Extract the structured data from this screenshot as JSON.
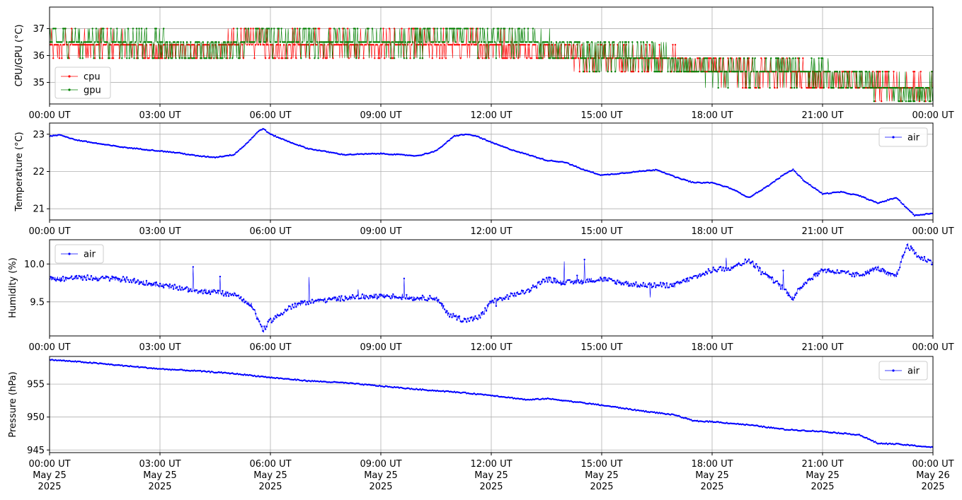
{
  "time_ticks": [
    "00:00 UT",
    "03:00 UT",
    "06:00 UT",
    "09:00 UT",
    "12:00 UT",
    "15:00 UT",
    "18:00 UT",
    "21:00 UT",
    "00:00 UT"
  ],
  "date_ticks": [
    "May 25",
    "May 25",
    "May 25",
    "May 25",
    "May 25",
    "May 25",
    "May 25",
    "May 25",
    "May 26"
  ],
  "year_ticks": [
    "2025",
    "2025",
    "2025",
    "2025",
    "2025",
    "2025",
    "2025",
    "2025",
    "2025"
  ],
  "colors": {
    "cpu": "#ff0000",
    "gpu": "#008000",
    "air": "#0000ff",
    "grid": "#b0b0b0"
  },
  "chart_data": [
    {
      "type": "line",
      "ylabel": "CPU/GPU (°C)",
      "xlim": [
        "2025-05-25 00:00 UT",
        "2025-05-26 00:00 UT"
      ],
      "ylim": [
        34.2,
        37.8
      ],
      "yticks": [
        35,
        36,
        37
      ],
      "ytick_labels": [
        "35",
        "36",
        "37"
      ],
      "grid": true,
      "legend": "lower-left",
      "x_hours": [
        0,
        1,
        2,
        3,
        4,
        5,
        5.75,
        6,
        7,
        8,
        9,
        10,
        11,
        11.5,
        12,
        13,
        14,
        15,
        16,
        17,
        18,
        19,
        20,
        21,
        22,
        22.5,
        23,
        24
      ],
      "series": [
        {
          "name": "cpu",
          "color": "#ff0000",
          "values": [
            36.4,
            36.4,
            36.4,
            36.2,
            36.3,
            36.4,
            36.6,
            36.4,
            36.4,
            36.4,
            36.4,
            36.4,
            36.4,
            36.4,
            36.4,
            36.4,
            36.1,
            35.9,
            35.9,
            35.8,
            35.5,
            35.4,
            35.4,
            35.2,
            35.0,
            34.9,
            34.8,
            34.8
          ]
        },
        {
          "name": "gpu",
          "color": "#008000",
          "values": [
            36.6,
            36.5,
            36.5,
            36.4,
            36.1,
            36.3,
            36.9,
            36.5,
            36.5,
            36.5,
            36.5,
            36.5,
            36.7,
            36.6,
            36.5,
            36.5,
            36.2,
            35.9,
            35.9,
            35.7,
            35.4,
            35.4,
            35.5,
            35.3,
            35.0,
            34.9,
            34.7,
            34.7
          ]
        }
      ]
    },
    {
      "type": "line",
      "ylabel": "Temperature (°C)",
      "xlim": [
        "2025-05-25 00:00 UT",
        "2025-05-26 00:00 UT"
      ],
      "ylim": [
        20.7,
        23.3
      ],
      "yticks": [
        21,
        22,
        23
      ],
      "ytick_labels": [
        "21",
        "22",
        "23"
      ],
      "grid": true,
      "legend": "upper-right",
      "x_hours": [
        0,
        0.3,
        0.7,
        1.5,
        2,
        2.5,
        3,
        3.5,
        4,
        4.5,
        5,
        5.3,
        5.7,
        5.8,
        6,
        6.5,
        7,
        8,
        9,
        10,
        10.5,
        11,
        11.3,
        11.6,
        12,
        12.5,
        13,
        13.5,
        14,
        14.5,
        15,
        15.5,
        16,
        16.5,
        17,
        17.5,
        18,
        18.5,
        19,
        19.5,
        20,
        20.2,
        20.5,
        21,
        21.5,
        22,
        22.5,
        23,
        23.5,
        24
      ],
      "series": [
        {
          "name": "air",
          "color": "#0000ff",
          "values": [
            22.95,
            22.98,
            22.85,
            22.72,
            22.65,
            22.6,
            22.55,
            22.5,
            22.42,
            22.38,
            22.45,
            22.7,
            23.1,
            23.15,
            23.0,
            22.8,
            22.62,
            22.45,
            22.48,
            22.42,
            22.55,
            22.95,
            23.0,
            22.95,
            22.78,
            22.6,
            22.45,
            22.3,
            22.25,
            22.05,
            21.9,
            21.95,
            22.0,
            22.05,
            21.85,
            21.7,
            21.7,
            21.55,
            21.3,
            21.6,
            21.95,
            22.05,
            21.75,
            21.4,
            21.45,
            21.35,
            21.15,
            21.3,
            20.82,
            20.88
          ]
        }
      ]
    },
    {
      "type": "line",
      "ylabel": "Humidity (%)",
      "xlim": [
        "2025-05-25 00:00 UT",
        "2025-05-26 00:00 UT"
      ],
      "ylim": [
        9.05,
        10.32
      ],
      "yticks": [
        9.5,
        10.0
      ],
      "ytick_labels": [
        "9.5",
        "10.0"
      ],
      "grid": true,
      "legend": "upper-left",
      "x_hours": [
        0,
        1,
        2,
        3,
        4,
        5,
        5.5,
        5.8,
        6,
        6.5,
        7,
        8,
        9,
        10,
        10.5,
        10.8,
        11.3,
        11.7,
        12,
        13,
        13.5,
        14,
        15,
        16,
        17,
        18,
        18.5,
        19,
        19.5,
        20,
        20.2,
        20.5,
        21,
        22,
        22.5,
        22.8,
        23,
        23.3,
        23.6,
        24
      ],
      "series": [
        {
          "name": "air",
          "color": "#0000ff",
          "values": [
            9.8,
            9.82,
            9.8,
            9.72,
            9.65,
            9.6,
            9.45,
            9.12,
            9.25,
            9.42,
            9.5,
            9.55,
            9.58,
            9.55,
            9.55,
            9.35,
            9.25,
            9.3,
            9.5,
            9.65,
            9.8,
            9.75,
            9.8,
            9.72,
            9.72,
            9.92,
            9.95,
            10.05,
            9.85,
            9.65,
            9.55,
            9.75,
            9.92,
            9.85,
            9.95,
            9.85,
            9.85,
            10.25,
            10.1,
            10.02
          ]
        }
      ]
    },
    {
      "type": "line",
      "ylabel": "Pressure (hPa)",
      "xlim": [
        "2025-05-25 00:00 UT",
        "2025-05-26 00:00 UT"
      ],
      "ylim": [
        944.6,
        959.2
      ],
      "yticks": [
        945,
        950,
        955
      ],
      "ytick_labels": [
        "945",
        "950",
        "955"
      ],
      "grid": true,
      "legend": "upper-right",
      "x_hours": [
        0,
        1,
        2,
        3,
        4,
        5,
        6,
        7,
        8,
        9,
        10,
        11,
        12,
        13,
        13.5,
        14,
        15,
        16,
        17,
        17.5,
        18,
        19,
        20,
        21,
        22,
        22.5,
        23,
        24
      ],
      "series": [
        {
          "name": "air",
          "color": "#0000ff",
          "values": [
            958.7,
            958.3,
            957.8,
            957.3,
            957.0,
            956.6,
            956.0,
            955.5,
            955.2,
            954.7,
            954.2,
            953.8,
            953.3,
            952.6,
            952.8,
            952.5,
            951.8,
            951.0,
            950.3,
            949.4,
            949.3,
            948.8,
            948.1,
            947.8,
            947.3,
            946.0,
            945.9,
            945.4
          ]
        }
      ]
    }
  ]
}
